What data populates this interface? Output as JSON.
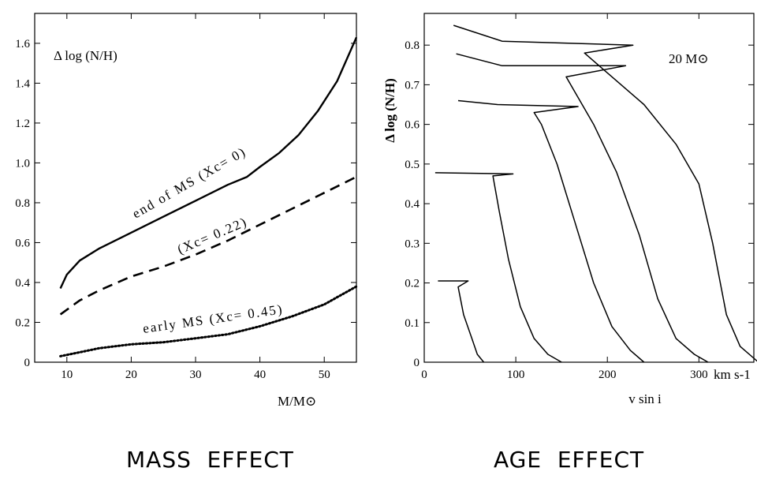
{
  "captions": {
    "left": "MASS  EFFECT",
    "right": "AGE  EFFECT"
  },
  "chart_data": [
    {
      "type": "line",
      "ylabel": "Δ log (N/H)",
      "xlabel": "M/M⊙",
      "xlim": [
        5,
        55
      ],
      "ylim": [
        0,
        1.75
      ],
      "xticks": [
        10,
        20,
        30,
        40,
        50
      ],
      "yticks": [
        0,
        0.2,
        0.4,
        0.6,
        0.8,
        1.0,
        1.2,
        1.4,
        1.6
      ],
      "ytick_labels": [
        "0",
        "0.2",
        "0.4",
        "0.6",
        "0.8",
        "1.0",
        "1.2",
        "1.4",
        "1.6"
      ],
      "series": [
        {
          "label": "end of MS (Xc= 0)",
          "style": "solid",
          "x": [
            9,
            10,
            12,
            15,
            20,
            25,
            30,
            35,
            38,
            40,
            43,
            46,
            49,
            52,
            55
          ],
          "y": [
            0.37,
            0.44,
            0.51,
            0.57,
            0.65,
            0.73,
            0.81,
            0.89,
            0.93,
            0.98,
            1.05,
            1.14,
            1.26,
            1.41,
            1.63
          ]
        },
        {
          "label": "(Xc= 0.22)",
          "style": "dashed",
          "x": [
            9,
            12,
            15,
            20,
            25,
            30,
            35,
            40,
            45,
            50,
            55
          ],
          "y": [
            0.24,
            0.31,
            0.36,
            0.43,
            0.48,
            0.54,
            0.61,
            0.69,
            0.77,
            0.85,
            0.93
          ]
        },
        {
          "label": "early MS (Xc= 0.45)",
          "style": "dotted",
          "x": [
            9,
            12,
            15,
            20,
            25,
            30,
            35,
            40,
            45,
            50,
            55
          ],
          "y": [
            0.03,
            0.05,
            0.07,
            0.09,
            0.1,
            0.12,
            0.14,
            0.18,
            0.23,
            0.29,
            0.38
          ]
        }
      ]
    },
    {
      "type": "line",
      "ylabel": "Δ log (N/H)",
      "xlabel": "v sin i",
      "xunit": "km s-1",
      "annotation": "20 M⊙",
      "xlim": [
        0,
        360
      ],
      "ylim": [
        0,
        0.88
      ],
      "xticks": [
        0,
        100,
        200,
        300
      ],
      "yticks": [
        0,
        0.1,
        0.2,
        0.3,
        0.4,
        0.5,
        0.6,
        0.7,
        0.8
      ],
      "ytick_labels": [
        "0",
        "0.1",
        "0.2",
        "0.3",
        "0.4",
        "0.5",
        "0.6",
        "0.7",
        "0.8"
      ],
      "series": [
        {
          "x": [
            15,
            48,
            37,
            43,
            52,
            58,
            65
          ],
          "y": [
            0.205,
            0.205,
            0.19,
            0.12,
            0.06,
            0.02,
            0.0
          ]
        },
        {
          "x": [
            12,
            97,
            75,
            82,
            92,
            105,
            120,
            135,
            150
          ],
          "y": [
            0.478,
            0.475,
            0.47,
            0.38,
            0.26,
            0.14,
            0.06,
            0.02,
            0.0
          ]
        },
        {
          "x": [
            37,
            80,
            168,
            120,
            128,
            145,
            165,
            185,
            205,
            225,
            240
          ],
          "y": [
            0.66,
            0.65,
            0.645,
            0.63,
            0.6,
            0.5,
            0.35,
            0.2,
            0.09,
            0.03,
            0.0
          ]
        },
        {
          "x": [
            35,
            85,
            220,
            155,
            165,
            185,
            210,
            235,
            255,
            275,
            295,
            310
          ],
          "y": [
            0.778,
            0.748,
            0.748,
            0.72,
            0.68,
            0.6,
            0.48,
            0.32,
            0.16,
            0.06,
            0.02,
            0.0
          ]
        },
        {
          "x": [
            32,
            85,
            228,
            175,
            195,
            240,
            275,
            300,
            315,
            330,
            345,
            365
          ],
          "y": [
            0.85,
            0.81,
            0.8,
            0.78,
            0.74,
            0.65,
            0.55,
            0.45,
            0.3,
            0.12,
            0.04,
            0.0
          ]
        }
      ]
    }
  ]
}
